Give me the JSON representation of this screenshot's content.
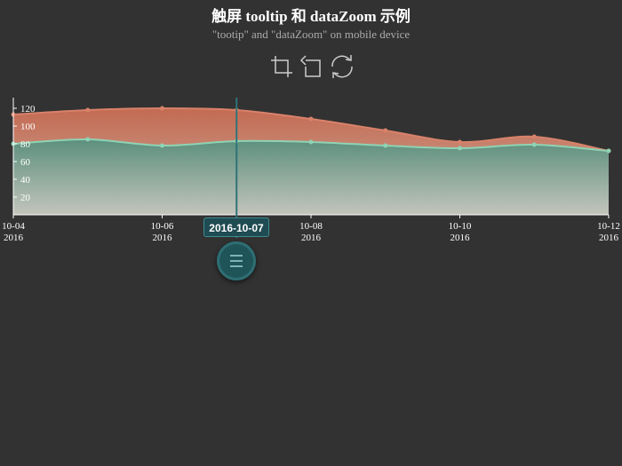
{
  "title": "触屏 tooltip 和 dataZoom 示例",
  "subtitle": "\"tootip\" and \"dataZoom\" on mobile device",
  "toolbox": {
    "items": [
      {
        "name": "data-zoom",
        "icon": "zoom-select-icon"
      },
      {
        "name": "zoom-back",
        "icon": "undo-icon"
      },
      {
        "name": "restore",
        "icon": "refresh-icon"
      }
    ]
  },
  "tooltip": {
    "label": "2016-10-07"
  },
  "chart_data": {
    "type": "area",
    "x": [
      "2016-10-04",
      "2016-10-05",
      "2016-10-06",
      "2016-10-07",
      "2016-10-08",
      "2016-10-09",
      "2016-10-10",
      "2016-10-11",
      "2016-10-12"
    ],
    "xticks": [
      {
        "date": "10-04",
        "year": "2016"
      },
      {
        "date": "10-06",
        "year": "2016"
      },
      {
        "date": "10-08",
        "year": "2016"
      },
      {
        "date": "10-10",
        "year": "2016"
      },
      {
        "date": "10-12",
        "year": "2016"
      }
    ],
    "yticks": [
      "20",
      "40",
      "60",
      "80",
      "100",
      "120"
    ],
    "ylim": [
      0,
      132
    ],
    "series": [
      {
        "values": [
          113,
          118,
          120,
          118,
          108,
          95,
          82,
          88,
          72
        ],
        "color": "#d9826a"
      },
      {
        "values": [
          80,
          85,
          78,
          83,
          82,
          78,
          75,
          79,
          72
        ],
        "color": "#8ed3b4"
      }
    ],
    "pointer_index": 3,
    "grid": false
  }
}
